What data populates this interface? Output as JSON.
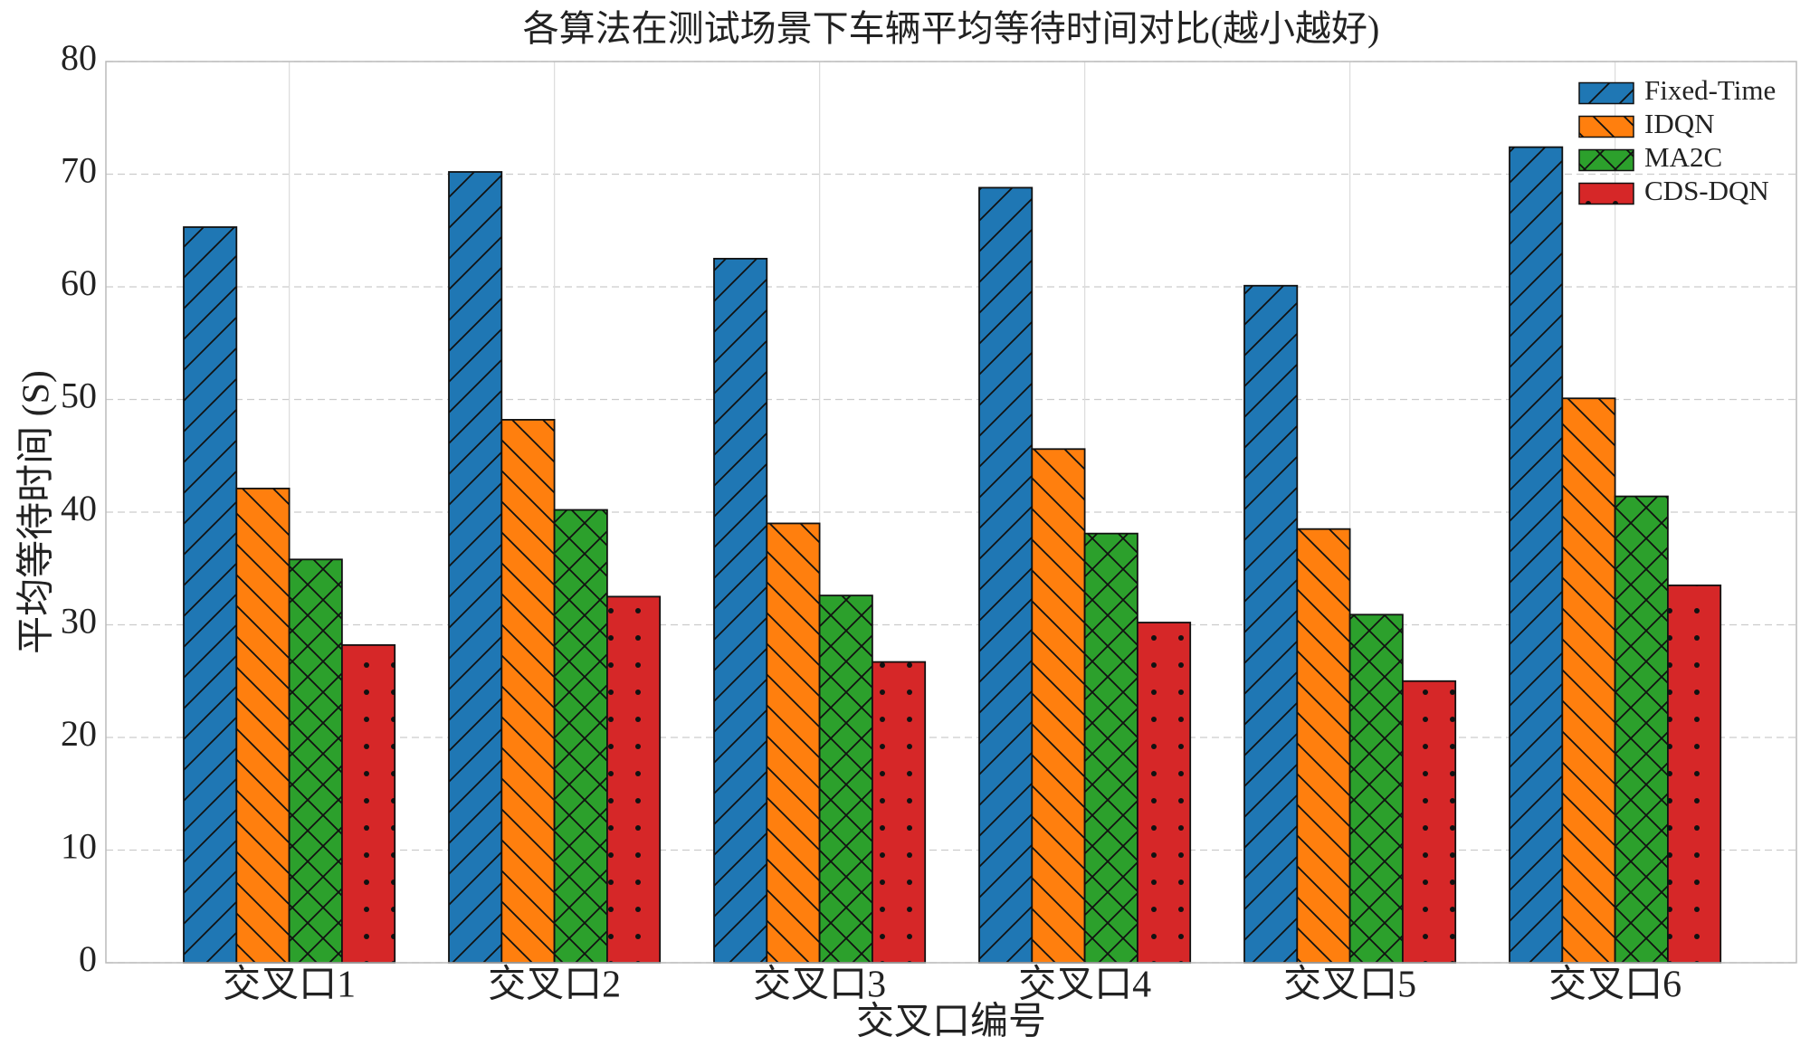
{
  "chart_data": {
    "type": "bar",
    "title": "各算法在测试场景下车辆平均等待时间对比(越小越好)",
    "x_label": "交叉口编号",
    "y_label": "平均等待时间 (S)",
    "categories": [
      "交叉口1",
      "交叉口2",
      "交叉口3",
      "交叉口4",
      "交叉口5",
      "交叉口6"
    ],
    "series": [
      {
        "name": "Fixed-Time",
        "color": "#1f77b4",
        "hatch": "/",
        "values": [
          65.3,
          70.2,
          62.5,
          68.8,
          60.1,
          72.4
        ]
      },
      {
        "name": "IDQN",
        "color": "#ff7f0e",
        "hatch": "\\",
        "values": [
          42.1,
          48.2,
          39.0,
          45.6,
          38.5,
          50.1
        ]
      },
      {
        "name": "MA2C",
        "color": "#2ca02c",
        "hatch": "x",
        "values": [
          35.8,
          40.2,
          32.6,
          38.1,
          30.9,
          41.4
        ]
      },
      {
        "name": "CDS-DQN",
        "color": "#d62728",
        "hatch": ".",
        "values": [
          28.2,
          32.5,
          26.7,
          30.2,
          25.0,
          33.5
        ]
      }
    ],
    "ylim": [
      0,
      80
    ],
    "yticks": [
      0,
      10,
      20,
      30,
      40,
      50,
      60,
      70,
      80
    ],
    "grid": true,
    "legend": "upper right"
  }
}
